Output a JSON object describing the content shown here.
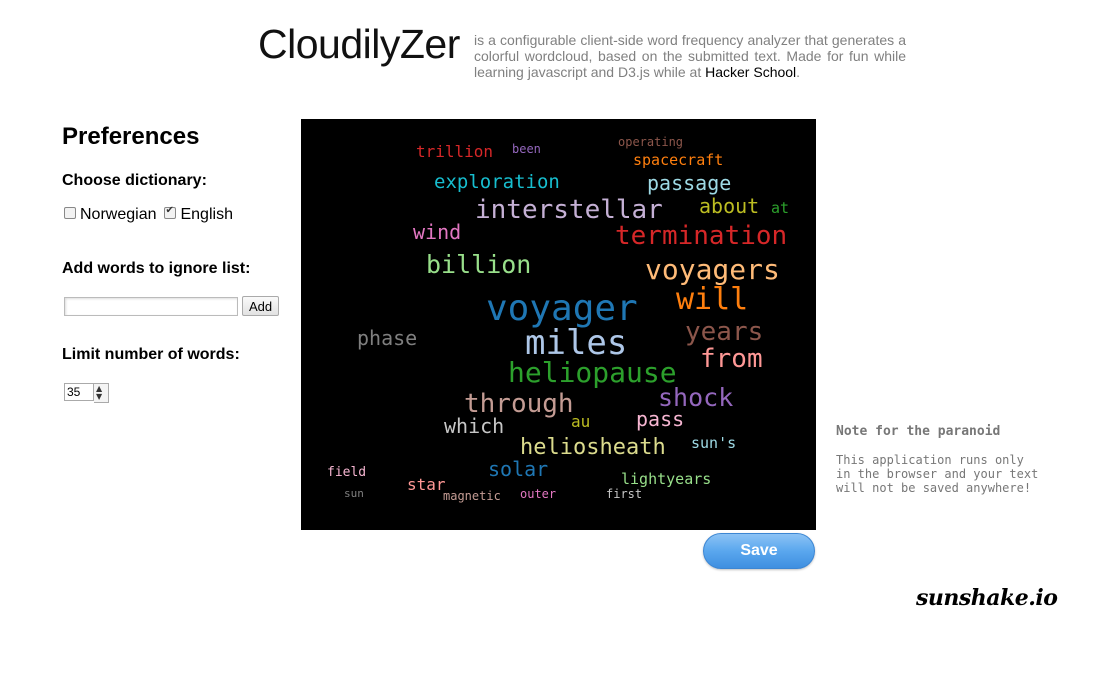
{
  "header": {
    "title": "CloudilyZer",
    "description": "is a configurable client-side word frequency analyzer that generates a colorful wordcloud, based on the submitted text. Made for fun while learning javascript and D3.js while at",
    "link_text": "Hacker School",
    "trailing": "."
  },
  "preferences": {
    "heading": "Preferences",
    "dictionary_label": "Choose dictionary:",
    "options": [
      {
        "label": "Norwegian",
        "checked": false
      },
      {
        "label": "English",
        "checked": true
      }
    ],
    "ignore_label": "Add words to ignore list:",
    "ignore_value": "",
    "add_button": "Add",
    "limit_label": "Limit number of words:",
    "limit_value": "35"
  },
  "cloud": {
    "background": "#000000",
    "words": [
      {
        "text": "trillion",
        "color": "#d62728"
      },
      {
        "text": "been",
        "color": "#9467bd"
      },
      {
        "text": "operating",
        "color": "#8c564b"
      },
      {
        "text": "spacecraft",
        "color": "#ff7f0e"
      },
      {
        "text": "exploration",
        "color": "#17becf"
      },
      {
        "text": "passage",
        "color": "#9edae5"
      },
      {
        "text": "interstellar",
        "color": "#c5b0d5"
      },
      {
        "text": "about",
        "color": "#bcbd22"
      },
      {
        "text": "at",
        "color": "#2ca02c"
      },
      {
        "text": "wind",
        "color": "#e377c2"
      },
      {
        "text": "termination",
        "color": "#d62728"
      },
      {
        "text": "billion",
        "color": "#98df8a"
      },
      {
        "text": "voyagers",
        "color": "#ffbb78"
      },
      {
        "text": "will",
        "color": "#ff7f0e"
      },
      {
        "text": "voyager",
        "color": "#1f77b4"
      },
      {
        "text": "phase",
        "color": "#7f7f7f"
      },
      {
        "text": "miles",
        "color": "#aec7e8"
      },
      {
        "text": "years",
        "color": "#8c564b"
      },
      {
        "text": "from",
        "color": "#ff9896"
      },
      {
        "text": "heliopause",
        "color": "#2ca02c"
      },
      {
        "text": "shock",
        "color": "#9467bd"
      },
      {
        "text": "through",
        "color": "#c49c94"
      },
      {
        "text": "pass",
        "color": "#f7b6d2"
      },
      {
        "text": "which",
        "color": "#c7c7c7"
      },
      {
        "text": "au",
        "color": "#bcbd22"
      },
      {
        "text": "heliosheath",
        "color": "#dbdb8d"
      },
      {
        "text": "sun's",
        "color": "#9edae5"
      },
      {
        "text": "solar",
        "color": "#1f77b4"
      },
      {
        "text": "field",
        "color": "#f7b6d2"
      },
      {
        "text": "star",
        "color": "#ff9896"
      },
      {
        "text": "lightyears",
        "color": "#98df8a"
      },
      {
        "text": "sun",
        "color": "#7f7f7f"
      },
      {
        "text": "magnetic",
        "color": "#c49c94"
      },
      {
        "text": "outer",
        "color": "#e377c2"
      },
      {
        "text": "first",
        "color": "#c7c7c7"
      }
    ]
  },
  "save_button": "Save",
  "note": {
    "title": "Note for the paranoid",
    "text": "This application runs only\nin the browser and your text\nwill not be saved anywhere!"
  },
  "brand": "sunshake.io"
}
